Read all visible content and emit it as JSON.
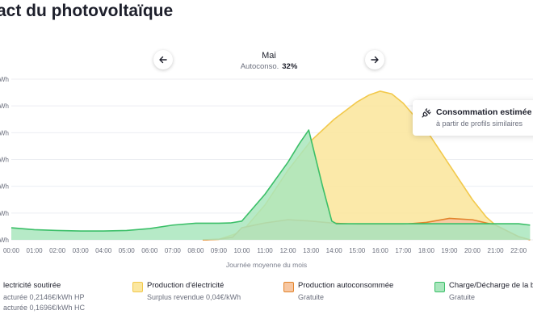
{
  "page": {
    "title": "act du photovoltaïque"
  },
  "nav": {
    "month": "Mai",
    "autoconso_label": "Autoconso.",
    "autoconso_value": "32%"
  },
  "tooltip": {
    "title": "Consommation estimée",
    "subtitle": "à partir de profils similaires"
  },
  "legend": [
    {
      "title": "lectricité soutirée",
      "sub": [
        "acturée 0,2146€/kWh HP",
        "acturée 0,1696€/kWh HC"
      ],
      "color": "#ffffff",
      "border": "#ffffff"
    },
    {
      "title": "Production d'électricité",
      "sub": [
        "Surplus revendue 0,04€/kWh"
      ],
      "color": "#fbe7a0",
      "border": "#f2c94c"
    },
    {
      "title": "Production autoconsommée",
      "sub": [
        "Gratuite"
      ],
      "color": "#f7c7a2",
      "border": "#e2842b"
    },
    {
      "title": "Charge/Décharge de la b",
      "sub": [
        "Gratuite"
      ],
      "color": "#a9e6bd",
      "border": "#3bbf68"
    }
  ],
  "chart_data": {
    "type": "area",
    "xlabel": "Journée moyenne du mois",
    "ylabel": "",
    "x_ticks": [
      "00:00",
      "01:00",
      "02:00",
      "03:00",
      "04:00",
      "05:00",
      "06:00",
      "07:00",
      "08:00",
      "09:00",
      "10:00",
      "11:00",
      "12:00",
      "13:00",
      "14:00",
      "15:00",
      "16:00",
      "17:00",
      "18:00",
      "19:00",
      "20:00",
      "21:00",
      "22:00"
    ],
    "y_ticks": [
      "Wh",
      "Wh",
      "Wh",
      "Wh",
      "Wh",
      "Wh",
      "Wh"
    ],
    "y_range": [
      0,
      6
    ],
    "series": [
      {
        "name": "Production d'électricité",
        "color": "#f2c94c",
        "points": [
          [
            8.3,
            0
          ],
          [
            9,
            0.02
          ],
          [
            10,
            0.3
          ],
          [
            11,
            1.3
          ],
          [
            12,
            2.6
          ],
          [
            13,
            3.7
          ],
          [
            14,
            4.5
          ],
          [
            15,
            5.15
          ],
          [
            15.5,
            5.4
          ],
          [
            16,
            5.55
          ],
          [
            16.5,
            5.45
          ],
          [
            17,
            5.1
          ],
          [
            18,
            4.1
          ],
          [
            19,
            2.8
          ],
          [
            20,
            1.5
          ],
          [
            20.6,
            0.85
          ],
          [
            21,
            0.55
          ],
          [
            22,
            0.12
          ],
          [
            22.5,
            0
          ]
        ]
      },
      {
        "name": "Production autoconsommée",
        "color": "#e2842b",
        "points": [
          [
            8.3,
            0
          ],
          [
            9,
            0.02
          ],
          [
            9.6,
            0.1
          ],
          [
            10,
            0.45
          ],
          [
            11,
            0.63
          ],
          [
            12,
            0.75
          ],
          [
            13,
            0.7
          ],
          [
            14,
            0.62
          ],
          [
            15,
            0.58
          ],
          [
            16,
            0.58
          ],
          [
            17,
            0.58
          ],
          [
            18,
            0.65
          ],
          [
            19,
            0.8
          ],
          [
            20,
            0.75
          ],
          [
            21,
            0.55
          ],
          [
            22,
            0.12
          ],
          [
            22.5,
            0
          ]
        ]
      },
      {
        "name": "Charge/Décharge de la b",
        "color": "#3bbf68",
        "points": [
          [
            0,
            0.45
          ],
          [
            1,
            0.38
          ],
          [
            2,
            0.35
          ],
          [
            3,
            0.33
          ],
          [
            4,
            0.33
          ],
          [
            5,
            0.35
          ],
          [
            6,
            0.42
          ],
          [
            7,
            0.55
          ],
          [
            8,
            0.62
          ],
          [
            9,
            0.62
          ],
          [
            9.5,
            0.63
          ],
          [
            10,
            0.7
          ],
          [
            11,
            1.7
          ],
          [
            12,
            2.9
          ],
          [
            12.5,
            3.6
          ],
          [
            12.9,
            4.1
          ],
          [
            13.1,
            3.4
          ],
          [
            13.5,
            2.0
          ],
          [
            13.9,
            0.7
          ],
          [
            14.1,
            0.6
          ],
          [
            20,
            0.6
          ],
          [
            21,
            0.6
          ],
          [
            22,
            0.6
          ],
          [
            22.5,
            0.55
          ]
        ]
      }
    ]
  }
}
